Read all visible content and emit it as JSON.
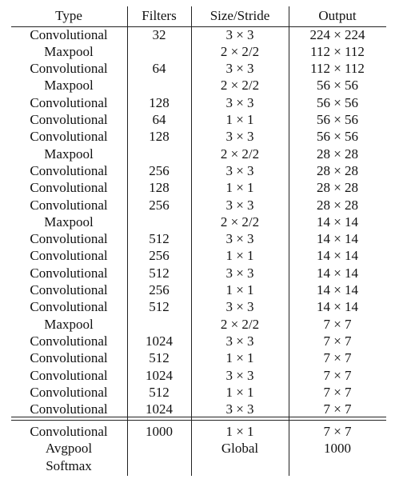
{
  "headers": [
    "Type",
    "Filters",
    "Size/Stride",
    "Output"
  ],
  "rows": [
    [
      "Convolutional",
      "32",
      "3 × 3",
      "224 × 224"
    ],
    [
      "Maxpool",
      "",
      "2 × 2/2",
      "112 × 112"
    ],
    [
      "Convolutional",
      "64",
      "3 × 3",
      "112 × 112"
    ],
    [
      "Maxpool",
      "",
      "2 × 2/2",
      "56 × 56"
    ],
    [
      "Convolutional",
      "128",
      "3 × 3",
      "56 × 56"
    ],
    [
      "Convolutional",
      "64",
      "1 × 1",
      "56 × 56"
    ],
    [
      "Convolutional",
      "128",
      "3 × 3",
      "56 × 56"
    ],
    [
      "Maxpool",
      "",
      "2 × 2/2",
      "28 × 28"
    ],
    [
      "Convolutional",
      "256",
      "3 × 3",
      "28 × 28"
    ],
    [
      "Convolutional",
      "128",
      "1 × 1",
      "28 × 28"
    ],
    [
      "Convolutional",
      "256",
      "3 × 3",
      "28 × 28"
    ],
    [
      "Maxpool",
      "",
      "2 × 2/2",
      "14 × 14"
    ],
    [
      "Convolutional",
      "512",
      "3 × 3",
      "14 × 14"
    ],
    [
      "Convolutional",
      "256",
      "1 × 1",
      "14 × 14"
    ],
    [
      "Convolutional",
      "512",
      "3 × 3",
      "14 × 14"
    ],
    [
      "Convolutional",
      "256",
      "1 × 1",
      "14 × 14"
    ],
    [
      "Convolutional",
      "512",
      "3 × 3",
      "14 × 14"
    ],
    [
      "Maxpool",
      "",
      "2 × 2/2",
      "7 × 7"
    ],
    [
      "Convolutional",
      "1024",
      "3 × 3",
      "7 × 7"
    ],
    [
      "Convolutional",
      "512",
      "1 × 1",
      "7 × 7"
    ],
    [
      "Convolutional",
      "1024",
      "3 × 3",
      "7 × 7"
    ],
    [
      "Convolutional",
      "512",
      "1 × 1",
      "7 × 7"
    ],
    [
      "Convolutional",
      "1024",
      "3 × 3",
      "7 × 7"
    ]
  ],
  "classifier_rows": [
    [
      "Convolutional",
      "1000",
      "1 × 1",
      "7 × 7"
    ],
    [
      "Avgpool",
      "",
      "Global",
      "1000"
    ],
    [
      "Softmax",
      "",
      "",
      ""
    ]
  ]
}
